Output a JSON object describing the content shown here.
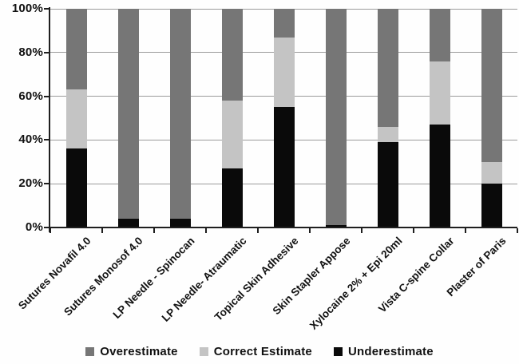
{
  "chart_data": {
    "type": "bar",
    "stacked": true,
    "orientation": "vertical",
    "title": "",
    "xlabel": "",
    "ylabel": "",
    "ylim": [
      0,
      100
    ],
    "grid": true,
    "legend_position": "bottom",
    "categories": [
      "Sutures Novafil 4.0",
      "Sutures Monosof 4.0",
      "LP Needle - Spinocan",
      "LP Needle- Atraumatic",
      "Topical Skin Adhesive",
      "Skin Stapler Appose",
      "Xylocaine 2% + Epi 20ml",
      "Vista C-spine Collar",
      "Plaster of Paris"
    ],
    "series": [
      {
        "name": "Underestimate",
        "color": "#0a0a0a",
        "values": [
          36,
          4,
          4,
          27,
          55,
          1,
          39,
          47,
          20
        ]
      },
      {
        "name": "Correct Estimate",
        "color": "#c4c4c4",
        "values": [
          27,
          0,
          0,
          31,
          32,
          0,
          7,
          29,
          10
        ]
      },
      {
        "name": "Overestimate",
        "color": "#767676",
        "values": [
          37,
          96,
          96,
          42,
          13,
          99,
          54,
          24,
          70
        ]
      }
    ],
    "legend_order": [
      "Overestimate",
      "Correct Estimate",
      "Underestimate"
    ],
    "yticks": [
      {
        "label": "0%",
        "value": 0
      },
      {
        "label": "20%",
        "value": 20
      },
      {
        "label": "40%",
        "value": 40
      },
      {
        "label": "60%",
        "value": 60
      },
      {
        "label": "80%",
        "value": 80
      },
      {
        "label": "100%",
        "value": 100
      }
    ]
  },
  "colors": {
    "gridline": "#9b9b9b",
    "axis": "#1f1f1f",
    "text": "#111111",
    "background": "#fefefe"
  }
}
